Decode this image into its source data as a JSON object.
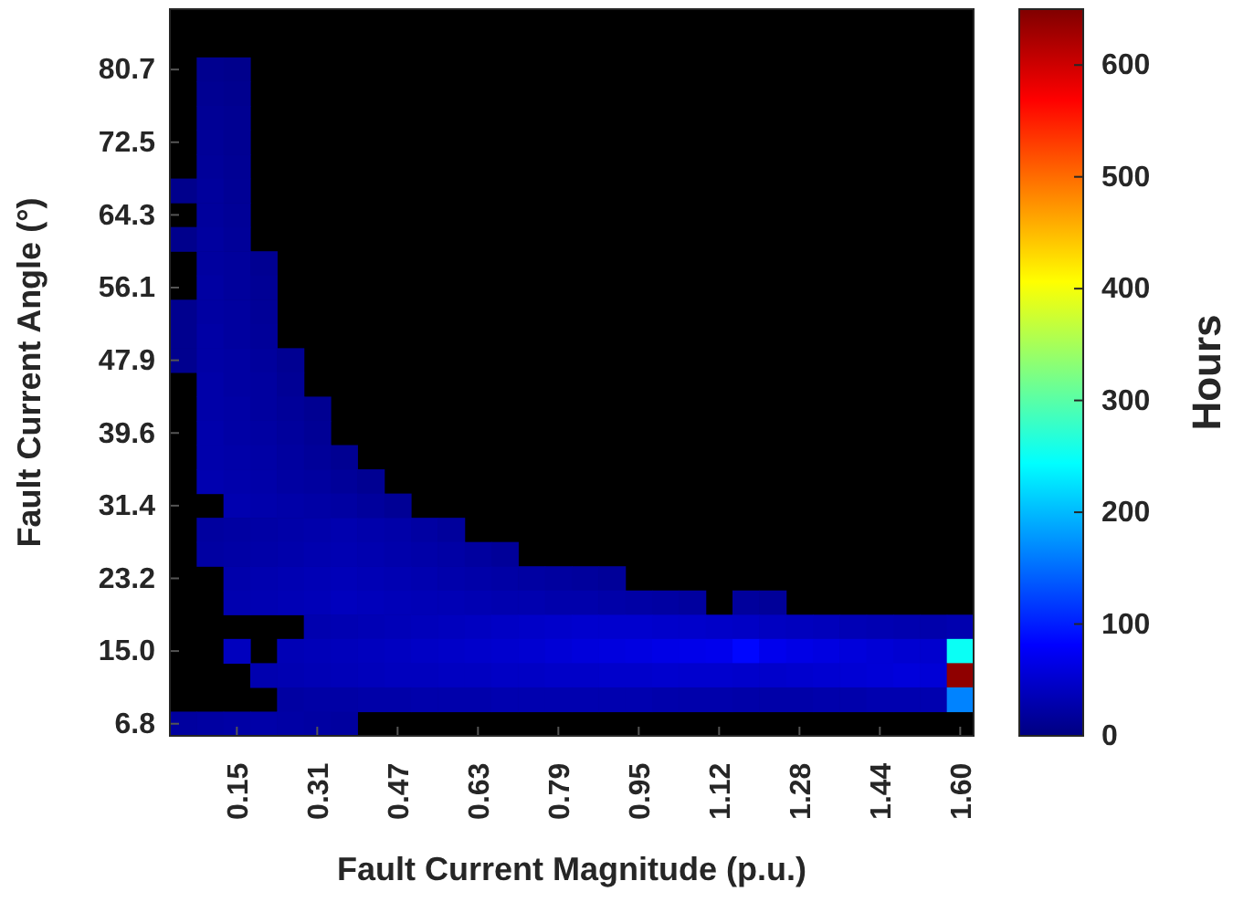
{
  "chart_data": {
    "type": "heatmap",
    "xlabel": "Fault Current Magnitude (p.u.)",
    "ylabel": "Fault Current Angle (°)",
    "clabel": "Hours",
    "categories": [
      null,
      null,
      "0.15",
      null,
      null,
      "0.31",
      null,
      null,
      "0.47",
      null,
      null,
      "0.63",
      null,
      null,
      "0.79",
      null,
      null,
      "0.95",
      null,
      null,
      "1.12",
      null,
      null,
      "1.28",
      null,
      null,
      "1.44",
      null,
      null,
      "1.60"
    ],
    "y_categories": [
      "80.7",
      null,
      null,
      "72.5",
      null,
      null,
      "64.3",
      null,
      null,
      "56.1",
      null,
      null,
      "47.9",
      null,
      null,
      "39.6",
      null,
      null,
      "31.4",
      null,
      null,
      "23.2",
      null,
      null,
      "15.0",
      null,
      null,
      "6.8"
    ],
    "clim": [
      0,
      650
    ],
    "cticks": [
      0,
      100,
      200,
      300,
      400,
      500,
      600
    ],
    "cells": [
      [
        null,
        10,
        8,
        null,
        null,
        null,
        null,
        null,
        null,
        null,
        null,
        null,
        null,
        null,
        null,
        null,
        null,
        null,
        null,
        null,
        null,
        null,
        null,
        null,
        null,
        null,
        null,
        null,
        null,
        null
      ],
      [
        null,
        12,
        10,
        null,
        null,
        null,
        null,
        null,
        null,
        null,
        null,
        null,
        null,
        null,
        null,
        null,
        null,
        null,
        null,
        null,
        null,
        null,
        null,
        null,
        null,
        null,
        null,
        null,
        null,
        null
      ],
      [
        null,
        14,
        12,
        null,
        null,
        null,
        null,
        null,
        null,
        null,
        null,
        null,
        null,
        null,
        null,
        null,
        null,
        null,
        null,
        null,
        null,
        null,
        null,
        null,
        null,
        null,
        null,
        null,
        null,
        null
      ],
      [
        null,
        15,
        12,
        null,
        null,
        null,
        null,
        null,
        null,
        null,
        null,
        null,
        null,
        null,
        null,
        null,
        null,
        null,
        null,
        null,
        null,
        null,
        null,
        null,
        null,
        null,
        null,
        null,
        null,
        null
      ],
      [
        null,
        16,
        13,
        null,
        null,
        null,
        null,
        null,
        null,
        null,
        null,
        null,
        null,
        null,
        null,
        null,
        null,
        null,
        null,
        null,
        null,
        null,
        null,
        null,
        null,
        null,
        null,
        null,
        null,
        null
      ],
      [
        8,
        18,
        14,
        null,
        null,
        null,
        null,
        null,
        null,
        null,
        null,
        null,
        null,
        null,
        null,
        null,
        null,
        null,
        null,
        null,
        null,
        null,
        null,
        null,
        null,
        null,
        null,
        null,
        null,
        null
      ],
      [
        null,
        18,
        15,
        null,
        null,
        null,
        null,
        null,
        null,
        null,
        null,
        null,
        null,
        null,
        null,
        null,
        null,
        null,
        null,
        null,
        null,
        null,
        null,
        null,
        null,
        null,
        null,
        null,
        null,
        null
      ],
      [
        8,
        20,
        16,
        null,
        null,
        null,
        null,
        null,
        null,
        null,
        null,
        null,
        null,
        null,
        null,
        null,
        null,
        null,
        null,
        null,
        null,
        null,
        null,
        null,
        null,
        null,
        null,
        null,
        null,
        null
      ],
      [
        null,
        20,
        18,
        12,
        null,
        null,
        null,
        null,
        null,
        null,
        null,
        null,
        null,
        null,
        null,
        null,
        null,
        null,
        null,
        null,
        null,
        null,
        null,
        null,
        null,
        null,
        null,
        null,
        null,
        null
      ],
      [
        null,
        22,
        18,
        14,
        null,
        null,
        null,
        null,
        null,
        null,
        null,
        null,
        null,
        null,
        null,
        null,
        null,
        null,
        null,
        null,
        null,
        null,
        null,
        null,
        null,
        null,
        null,
        null,
        null,
        null
      ],
      [
        10,
        22,
        20,
        15,
        null,
        null,
        null,
        null,
        null,
        null,
        null,
        null,
        null,
        null,
        null,
        null,
        null,
        null,
        null,
        null,
        null,
        null,
        null,
        null,
        null,
        null,
        null,
        null,
        null,
        null
      ],
      [
        10,
        24,
        20,
        16,
        null,
        null,
        null,
        null,
        null,
        null,
        null,
        null,
        null,
        null,
        null,
        null,
        null,
        null,
        null,
        null,
        null,
        null,
        null,
        null,
        null,
        null,
        null,
        null,
        null,
        null
      ],
      [
        10,
        24,
        22,
        18,
        12,
        null,
        null,
        null,
        null,
        null,
        null,
        null,
        null,
        null,
        null,
        null,
        null,
        null,
        null,
        null,
        null,
        null,
        null,
        null,
        null,
        null,
        null,
        null,
        null,
        null
      ],
      [
        null,
        26,
        22,
        20,
        14,
        null,
        null,
        null,
        null,
        null,
        null,
        null,
        null,
        null,
        null,
        null,
        null,
        null,
        null,
        null,
        null,
        null,
        null,
        null,
        null,
        null,
        null,
        null,
        null,
        null
      ],
      [
        null,
        26,
        24,
        20,
        16,
        12,
        null,
        null,
        null,
        null,
        null,
        null,
        null,
        null,
        null,
        null,
        null,
        null,
        null,
        null,
        null,
        null,
        null,
        null,
        null,
        null,
        null,
        null,
        null,
        null
      ],
      [
        null,
        28,
        24,
        22,
        18,
        14,
        null,
        null,
        null,
        null,
        null,
        null,
        null,
        null,
        null,
        null,
        null,
        null,
        null,
        null,
        null,
        null,
        null,
        null,
        null,
        null,
        null,
        null,
        null,
        null
      ],
      [
        null,
        28,
        26,
        24,
        20,
        16,
        12,
        null,
        null,
        null,
        null,
        null,
        null,
        null,
        null,
        null,
        null,
        null,
        null,
        null,
        null,
        null,
        null,
        null,
        null,
        null,
        null,
        null,
        null,
        null
      ],
      [
        null,
        30,
        28,
        26,
        22,
        20,
        16,
        12,
        null,
        null,
        null,
        null,
        null,
        null,
        null,
        null,
        null,
        null,
        null,
        null,
        null,
        null,
        null,
        null,
        null,
        null,
        null,
        null,
        null,
        null
      ],
      [
        null,
        null,
        30,
        28,
        26,
        24,
        22,
        18,
        14,
        null,
        null,
        null,
        null,
        null,
        null,
        null,
        null,
        null,
        null,
        null,
        null,
        null,
        null,
        null,
        null,
        null,
        null,
        null,
        null,
        null
      ],
      [
        null,
        20,
        22,
        24,
        26,
        28,
        30,
        28,
        26,
        22,
        18,
        null,
        null,
        null,
        null,
        null,
        null,
        null,
        null,
        null,
        null,
        null,
        null,
        null,
        null,
        null,
        null,
        null,
        null,
        null
      ],
      [
        null,
        22,
        24,
        26,
        28,
        30,
        32,
        30,
        28,
        26,
        24,
        20,
        16,
        null,
        null,
        null,
        null,
        null,
        null,
        null,
        null,
        null,
        null,
        null,
        null,
        null,
        null,
        null,
        null,
        null
      ],
      [
        null,
        null,
        28,
        30,
        32,
        34,
        36,
        34,
        32,
        30,
        28,
        26,
        24,
        22,
        20,
        18,
        16,
        null,
        null,
        null,
        null,
        null,
        null,
        null,
        null,
        null,
        null,
        null,
        null,
        null
      ],
      [
        null,
        null,
        30,
        32,
        34,
        36,
        40,
        38,
        36,
        35,
        34,
        32,
        30,
        30,
        28,
        28,
        26,
        24,
        22,
        20,
        null,
        18,
        16,
        null,
        null,
        null,
        null,
        null,
        null,
        null
      ],
      [
        null,
        null,
        null,
        null,
        null,
        30,
        32,
        34,
        36,
        38,
        40,
        42,
        44,
        46,
        48,
        50,
        50,
        50,
        48,
        48,
        46,
        44,
        42,
        40,
        38,
        34,
        32,
        30,
        28,
        30
      ],
      [
        null,
        null,
        40,
        null,
        34,
        36,
        38,
        40,
        42,
        44,
        46,
        48,
        50,
        52,
        55,
        58,
        60,
        62,
        65,
        68,
        70,
        85,
        70,
        65,
        62,
        58,
        55,
        52,
        50,
        250
      ],
      [
        null,
        null,
        null,
        30,
        32,
        34,
        36,
        38,
        40,
        40,
        42,
        42,
        44,
        44,
        46,
        46,
        48,
        48,
        50,
        50,
        50,
        48,
        48,
        50,
        52,
        54,
        56,
        58,
        55,
        640
      ],
      [
        null,
        null,
        null,
        null,
        22,
        24,
        24,
        26,
        26,
        28,
        28,
        28,
        30,
        30,
        30,
        30,
        30,
        30,
        28,
        28,
        28,
        26,
        26,
        26,
        28,
        28,
        30,
        30,
        30,
        165
      ],
      [
        20,
        22,
        24,
        26,
        24,
        22,
        20,
        null,
        null,
        null,
        null,
        null,
        null,
        null,
        null,
        null,
        null,
        null,
        null,
        null,
        null,
        null,
        null,
        null,
        null,
        null,
        null,
        null,
        null,
        null
      ]
    ]
  }
}
